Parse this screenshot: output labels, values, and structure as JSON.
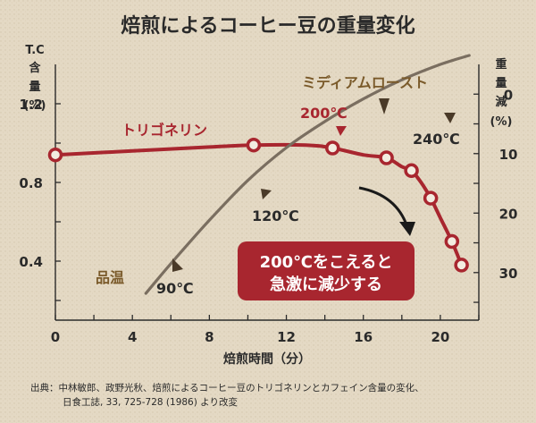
{
  "chart_data": {
    "type": "line",
    "title": "焙煎によるコーヒー豆の重量変化",
    "xlabel": "焙煎時間（分）",
    "xlim": [
      0,
      22
    ],
    "xticks": [
      0,
      4,
      8,
      12,
      16,
      20
    ],
    "y_left": {
      "label_lines": [
        "T.C",
        "含",
        "量",
        "(%)"
      ],
      "ylim": [
        0.1,
        1.4
      ],
      "ticks": [
        0.4,
        0.8,
        1.2
      ]
    },
    "y_right": {
      "label_lines": [
        "重",
        "量",
        "減",
        "(%)"
      ],
      "ylim": [
        -5,
        38
      ],
      "ticks": [
        0,
        10,
        20,
        30
      ]
    },
    "series": [
      {
        "name": "トリゴネリン",
        "axis": "left",
        "color": "#a8262f",
        "x": [
          0,
          4,
          8,
          10.3,
          13,
          14.4,
          16,
          17.2,
          18,
          18.5,
          19,
          19.5,
          20,
          20.6,
          21.1
        ],
        "y": [
          0.94,
          0.96,
          0.98,
          0.99,
          0.99,
          0.975,
          0.94,
          0.925,
          0.88,
          0.86,
          0.8,
          0.72,
          0.62,
          0.5,
          0.38
        ],
        "markers_x": [
          0,
          10.3,
          14.4,
          17.2,
          18.5,
          19.5,
          20.6,
          21.1
        ],
        "markers_y": [
          0.94,
          0.99,
          0.975,
          0.925,
          0.86,
          0.72,
          0.5,
          0.38
        ]
      },
      {
        "name": "ミディアムロースト",
        "axis": "right",
        "color": "#7a6e60",
        "x": [
          4.7,
          6,
          8,
          10,
          12,
          14,
          16,
          18,
          20,
          21.5
        ],
        "y": [
          33.5,
          28.5,
          21.2,
          14.5,
          9,
          4.6,
          0.8,
          -2.4,
          -5,
          -6.5
        ]
      }
    ],
    "annotations": [
      {
        "text": "品温",
        "color": "#7a5a2a"
      },
      {
        "text": "90℃",
        "color": "#2a2a2a"
      },
      {
        "text": "120℃",
        "color": "#2a2a2a"
      },
      {
        "text": "200℃",
        "color": "#a8262f"
      },
      {
        "text": "240℃",
        "color": "#2a2a2a"
      }
    ],
    "callout": {
      "lines": [
        "200℃をこえると",
        "急激に減少する"
      ],
      "bg": "#a8262f",
      "color": "#ffffff"
    },
    "source_lines": [
      "出典：中林敏郎、政野光秋、焙煎によるコーヒー豆のトリゴネリンとカフェイン含量の変化、",
      "日食工誌, 33, 725-728 (1986) より改変"
    ]
  }
}
